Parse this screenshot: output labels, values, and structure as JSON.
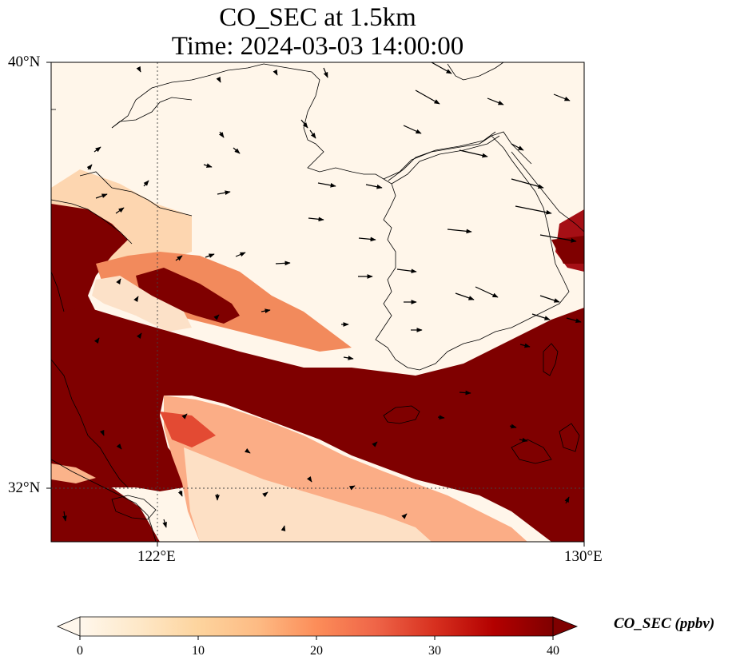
{
  "title": {
    "line1": "CO_SEC at 1.5km",
    "line2": "Time: 2024-03-03 14:00:00"
  },
  "axes": {
    "lat_labels": [
      "40°N",
      "32°N"
    ],
    "lon_labels": [
      "122°E",
      "130°E"
    ],
    "lat_range": [
      31,
      40
    ],
    "lon_range": [
      120,
      130
    ]
  },
  "colorbar": {
    "title": "CO_SEC (ppbv)",
    "ticks": [
      "0",
      "10",
      "20",
      "30",
      "40"
    ],
    "range": [
      0,
      40
    ],
    "extend": "both",
    "colormap": "OrRd",
    "colors": [
      "#fff7ec",
      "#fee8c8",
      "#fdd49e",
      "#fdbb84",
      "#fc8d59",
      "#ef6548",
      "#d7301f",
      "#b30000",
      "#7f0000"
    ]
  },
  "map": {
    "field": "CO_SEC",
    "units": "ppbv",
    "level": "1.5km",
    "gridlines": "dotted",
    "features": [
      "coastlines",
      "country-borders",
      "wind-vectors"
    ]
  }
}
